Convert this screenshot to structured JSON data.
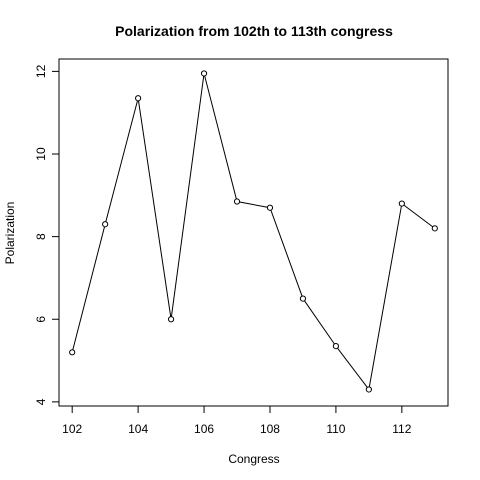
{
  "chart_data": {
    "type": "line",
    "title": "Polarization from 102th to 113th congress",
    "xlabel": "Congress",
    "ylabel": "Polarization",
    "x": [
      102,
      103,
      104,
      105,
      106,
      107,
      108,
      109,
      110,
      111,
      112,
      113
    ],
    "series": [
      {
        "values": [
          5.2,
          8.3,
          11.35,
          6.0,
          11.95,
          8.85,
          8.7,
          6.5,
          5.35,
          4.3,
          8.8,
          8.2
        ]
      }
    ],
    "xlim": [
      101.6,
      113.4
    ],
    "ylim": [
      3.9,
      12.3
    ],
    "x_ticks": [
      102,
      104,
      106,
      108,
      110,
      112
    ],
    "y_ticks": [
      4,
      6,
      8,
      10,
      12
    ],
    "grid": false,
    "legend": "none",
    "colors": {
      "line": "#000000",
      "marker_stroke": "#000000",
      "marker_fill": "#ffffff",
      "background": "#ffffff"
    },
    "marker": "open-circle"
  }
}
